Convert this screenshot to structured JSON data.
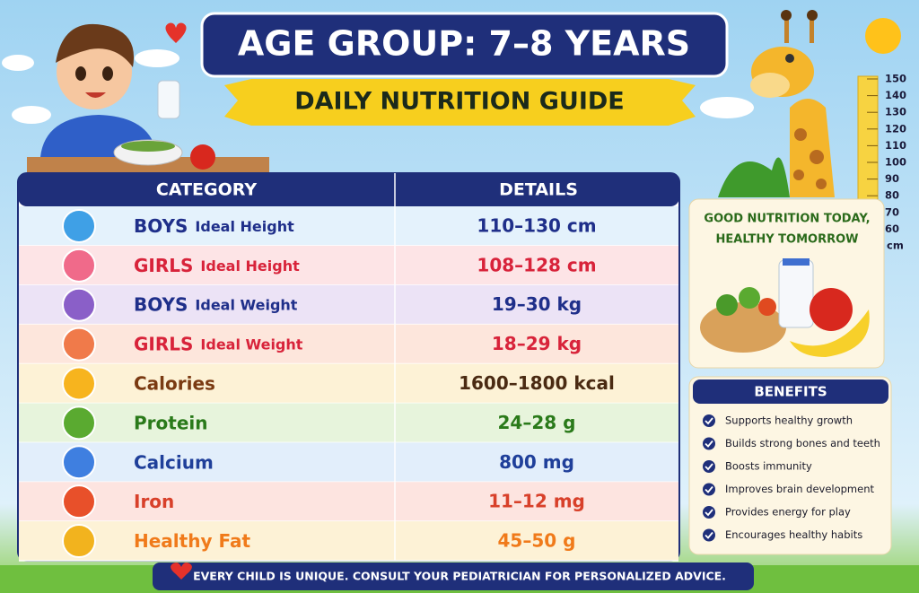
{
  "header": {
    "title": "AGE GROUP: 7–8 YEARS",
    "subtitle": "DAILY NUTRITION GUIDE"
  },
  "table": {
    "columns": [
      "CATEGORY",
      "DETAILS"
    ],
    "rows": [
      {
        "label": "BOYS",
        "sublabel": "Ideal Height",
        "value": "110–130 cm"
      },
      {
        "label": "GIRLS",
        "sublabel": "Ideal Height",
        "value": "108–128 cm"
      },
      {
        "label": "BOYS",
        "sublabel": "Ideal Weight",
        "value": "19–30 kg"
      },
      {
        "label": "GIRLS",
        "sublabel": "Ideal Weight",
        "value": "18–29 kg"
      },
      {
        "label": "Calories",
        "value": "1600–1800 kcal"
      },
      {
        "label": "Protein",
        "value": "24–28 g"
      },
      {
        "label": "Calcium",
        "value": "800 mg"
      },
      {
        "label": "Iron",
        "value": "11–12 mg"
      },
      {
        "label": "Healthy Fat",
        "value": "45–50 g"
      }
    ]
  },
  "ruler": {
    "ticks": [
      150,
      140,
      130,
      120,
      110,
      100,
      90,
      80,
      70,
      60
    ],
    "unit": "cm"
  },
  "slogan": [
    "GOOD NUTRITION TODAY,",
    "HEALTHY TOMORROW"
  ],
  "benefits": {
    "title": "BENEFITS",
    "items": [
      "Supports healthy growth",
      "Builds strong bones and teeth",
      "Boosts immunity",
      "Improves brain development",
      "Provides energy for play",
      "Encourages healthy habits"
    ]
  },
  "footer": "EVERY CHILD IS UNIQUE. CONSULT YOUR PEDIATRICIAN FOR PERSONALIZED ADVICE."
}
